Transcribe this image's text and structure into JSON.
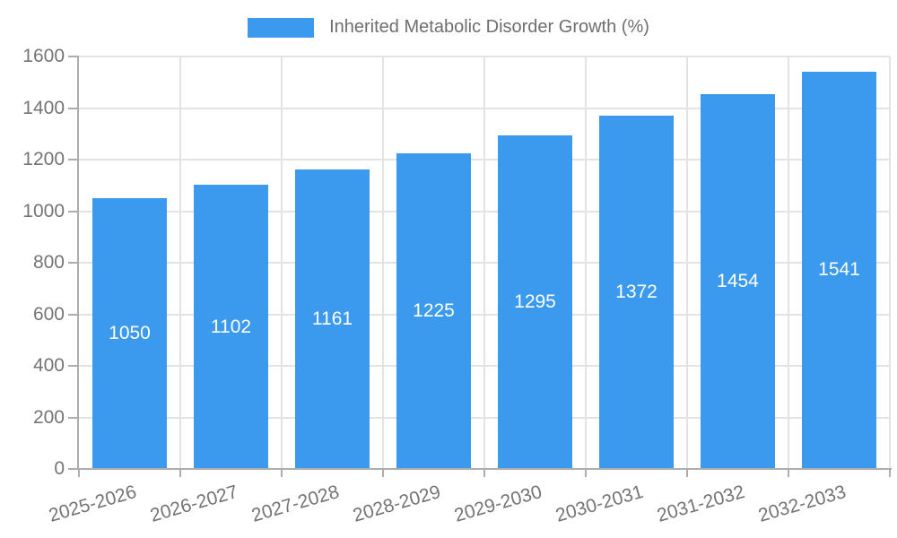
{
  "chart_data": {
    "type": "bar",
    "title": "Inherited Metabolic Disorder Growth (%)",
    "legend": [
      "Inherited Metabolic Disorder Growth (%)"
    ],
    "legend_position": "top-center",
    "categories": [
      "2025-2026",
      "2026-2027",
      "2027-2028",
      "2028-2029",
      "2029-2030",
      "2030-2031",
      "2031-2032",
      "2032-2033"
    ],
    "values": [
      1050,
      1102,
      1161,
      1225,
      1295,
      1372,
      1454,
      1541
    ],
    "bar_value_labels_shown": true,
    "xlabel": "",
    "ylabel": "",
    "ylim": [
      0,
      1600
    ],
    "yticks": [
      0,
      200,
      400,
      600,
      800,
      1000,
      1200,
      1400,
      1600
    ],
    "grid": true,
    "colors": {
      "bar": "#3B9AED",
      "bar_label": "#FFFFFF",
      "grid": "#E3E3E3",
      "axis": "#ADADAD",
      "tick_text": "#757575",
      "legend_text": "#6E6E6E",
      "background": "#FFFFFF"
    }
  }
}
